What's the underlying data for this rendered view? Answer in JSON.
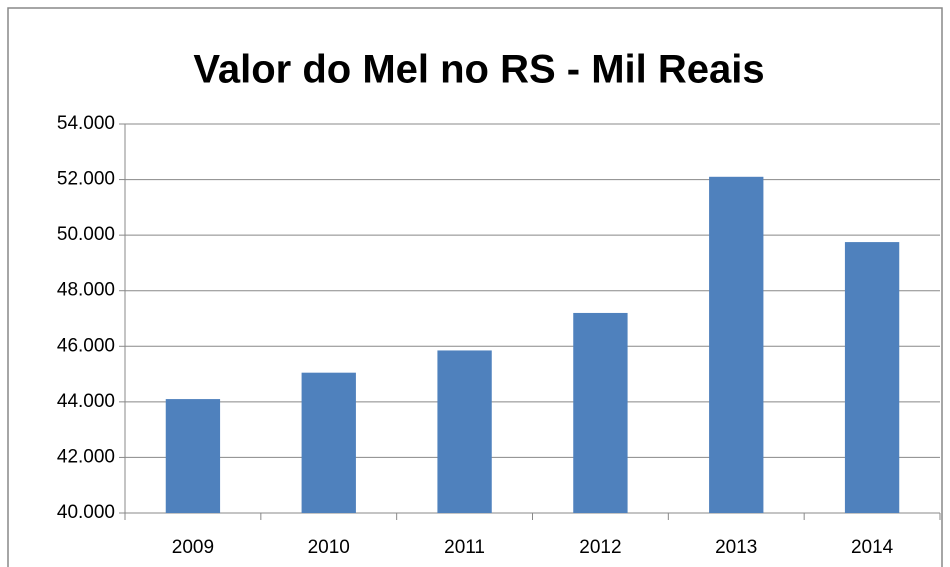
{
  "chart_data": {
    "type": "bar",
    "title": "Valor do Mel no RS - Mil Reais",
    "categories": [
      "2009",
      "2010",
      "2011",
      "2012",
      "2013",
      "2014"
    ],
    "values": [
      44100,
      45050,
      45850,
      47200,
      52100,
      49750
    ],
    "color": "#4f81bd",
    "ylim": [
      40000,
      54000
    ],
    "yticks": [
      {
        "value": 40000,
        "label": "40.000"
      },
      {
        "value": 42000,
        "label": "42.000"
      },
      {
        "value": 44000,
        "label": "44.000"
      },
      {
        "value": 46000,
        "label": "46.000"
      },
      {
        "value": 48000,
        "label": "48.000"
      },
      {
        "value": 50000,
        "label": "50.000"
      },
      {
        "value": 52000,
        "label": "52.000"
      },
      {
        "value": 54000,
        "label": "54.000"
      }
    ],
    "grid": true
  }
}
